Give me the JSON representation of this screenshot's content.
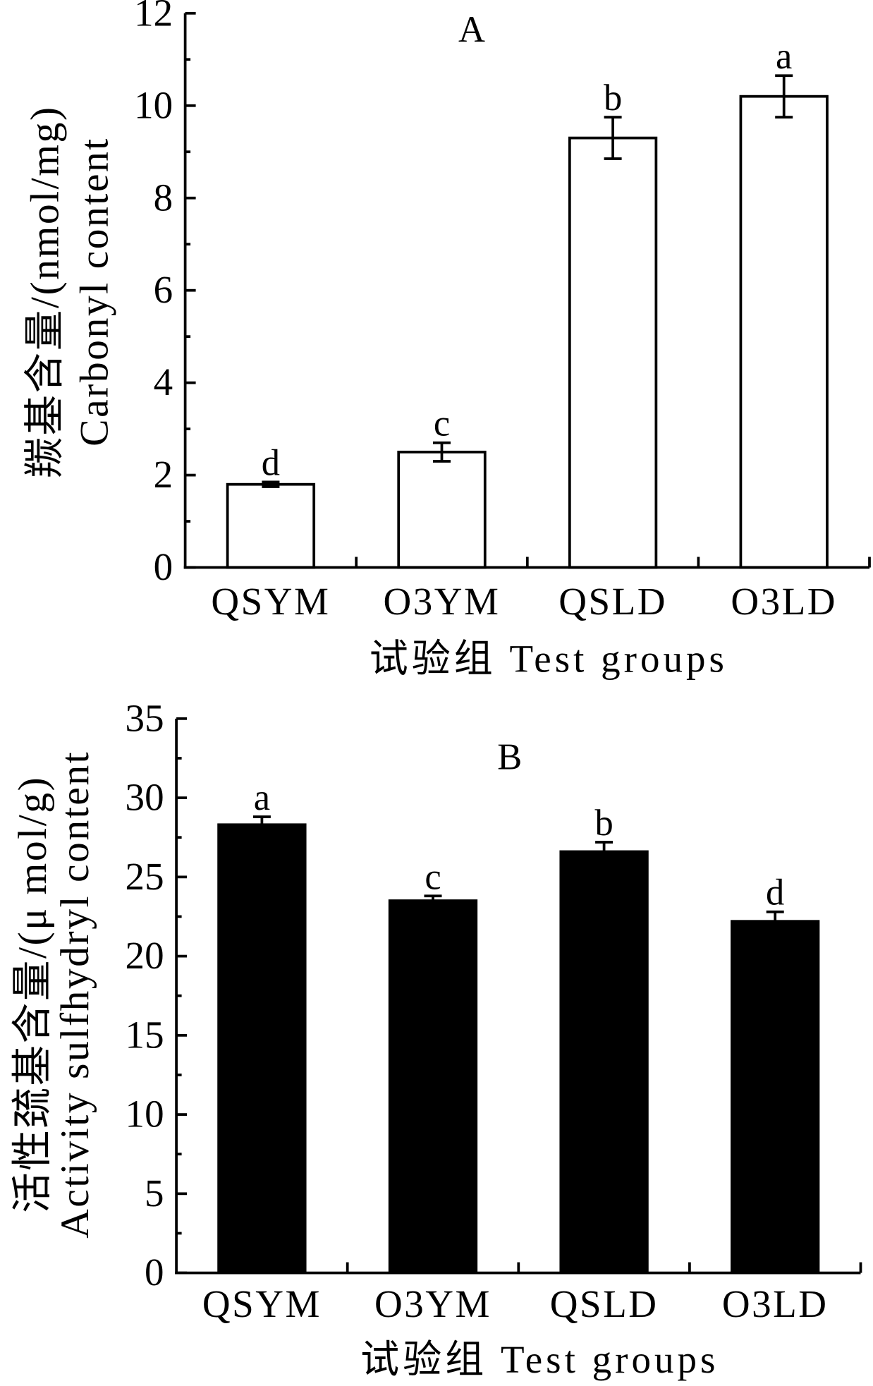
{
  "chart_data": [
    {
      "type": "bar",
      "title": "A",
      "categories": [
        "QSYM",
        "O3YM",
        "QSLD",
        "O3LD"
      ],
      "values": [
        1.8,
        2.5,
        9.3,
        10.2
      ],
      "errors": [
        0.05,
        0.2,
        0.45,
        0.45
      ],
      "error_bars": "both",
      "significance": [
        "d",
        "c",
        "b",
        "a"
      ],
      "xlabel": "试验组 Test groups",
      "ylabel": [
        "羰基含量/(nmol/mg)",
        "Carbonyl content"
      ],
      "ylim": [
        0,
        12
      ],
      "yticks": [
        0,
        2,
        4,
        6,
        8,
        10,
        12
      ],
      "bar_color": "#ffffff",
      "edge_color": "#000000"
    },
    {
      "type": "bar",
      "title": "B",
      "categories": [
        "QSYM",
        "O3YM",
        "QSLD",
        "O3LD"
      ],
      "values": [
        28.3,
        23.5,
        26.6,
        22.2
      ],
      "errors": [
        0.5,
        0.3,
        0.6,
        0.6
      ],
      "error_bars": "upper",
      "significance": [
        "a",
        "c",
        "b",
        "d"
      ],
      "xlabel": "试验组 Test groups",
      "ylabel": [
        "活性巯基含量/(μ mol/g)",
        "Activity sulfhydryl content"
      ],
      "ylim": [
        0,
        35
      ],
      "yticks": [
        0,
        5,
        10,
        15,
        20,
        25,
        30,
        35
      ],
      "bar_color": "#000000",
      "edge_color": "#000000"
    }
  ]
}
